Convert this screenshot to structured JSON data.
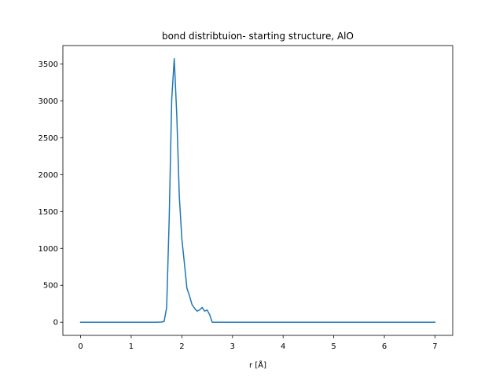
{
  "chart_data": {
    "type": "line",
    "title": "bond distribtuion- starting structure, AlO",
    "xlabel": "r [Å]",
    "ylabel": "",
    "xlim": [
      -0.35,
      7.35
    ],
    "ylim": [
      -178.5,
      3748.5
    ],
    "xticks": [
      0,
      1,
      2,
      3,
      4,
      5,
      6,
      7
    ],
    "yticks": [
      0,
      500,
      1000,
      1500,
      2000,
      2500,
      3000,
      3500
    ],
    "grid": false,
    "line_color": "#1f77b4",
    "series": [
      {
        "name": "",
        "x": [
          0,
          0.5,
          1.0,
          1.5,
          1.6,
          1.65,
          1.7,
          1.75,
          1.8,
          1.85,
          1.9,
          1.95,
          2.0,
          2.05,
          2.1,
          2.15,
          2.2,
          2.25,
          2.3,
          2.35,
          2.4,
          2.45,
          2.5,
          2.55,
          2.6,
          3.0,
          4.0,
          5.0,
          6.0,
          7.0
        ],
        "y": [
          0,
          0,
          0,
          0,
          2,
          10,
          200,
          1400,
          3020,
          3570,
          2800,
          1700,
          1130,
          800,
          460,
          360,
          240,
          190,
          150,
          165,
          200,
          150,
          165,
          100,
          0,
          0,
          0,
          0,
          0,
          0
        ]
      }
    ]
  }
}
